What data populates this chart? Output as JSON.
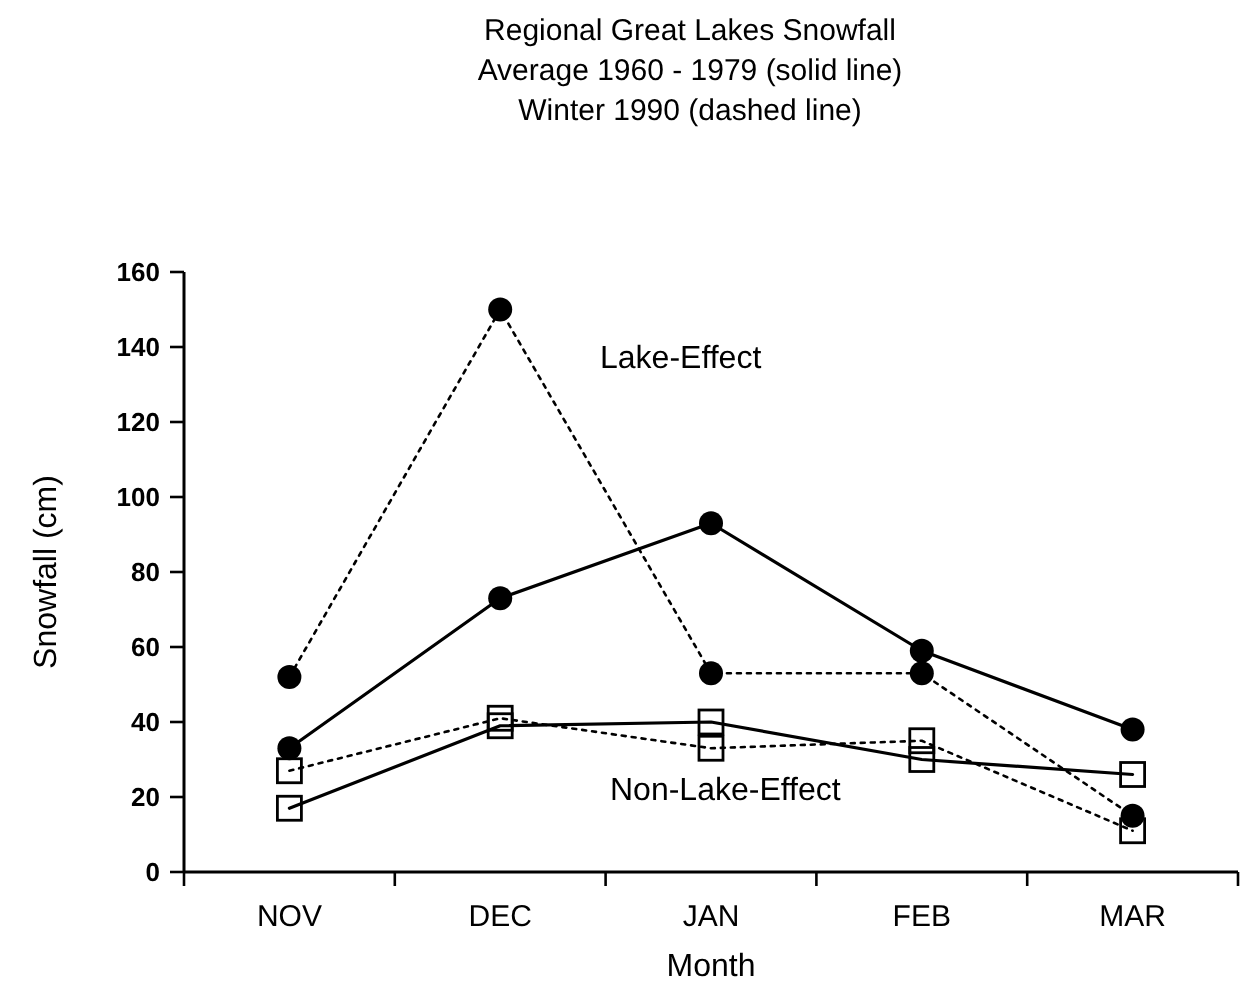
{
  "chart_data": {
    "type": "line",
    "title": "Regional Great Lakes Snowfall\nAverage 1960 - 1979 (solid line)\nWinter 1990 (dashed line)",
    "xlabel": "Month",
    "ylabel": "Snowfall (cm)",
    "categories": [
      "NOV",
      "DEC",
      "JAN",
      "FEB",
      "MAR"
    ],
    "series": [
      {
        "color": "#000000",
        "values": [
          33,
          73,
          93,
          59,
          38
        ],
        "line_style": "solid",
        "marker": "circle"
      },
      {
        "color": "#000000",
        "values": [
          52,
          150,
          53,
          53,
          15
        ],
        "line_style": "dotted",
        "marker": "circle"
      },
      {
        "color": "#000000",
        "values": [
          17,
          39,
          40,
          30,
          26
        ],
        "line_style": "solid",
        "marker": "square"
      },
      {
        "color": "#000000",
        "values": [
          27,
          41,
          33,
          35,
          11
        ],
        "line_style": "dotted",
        "marker": "square"
      }
    ],
    "ylim": [
      0,
      160
    ],
    "yticks": [
      0,
      20,
      40,
      60,
      80,
      100,
      120,
      140,
      160
    ],
    "grid": false,
    "annotations": [
      "Lake-Effect",
      "Non-Lake-Effect"
    ]
  }
}
